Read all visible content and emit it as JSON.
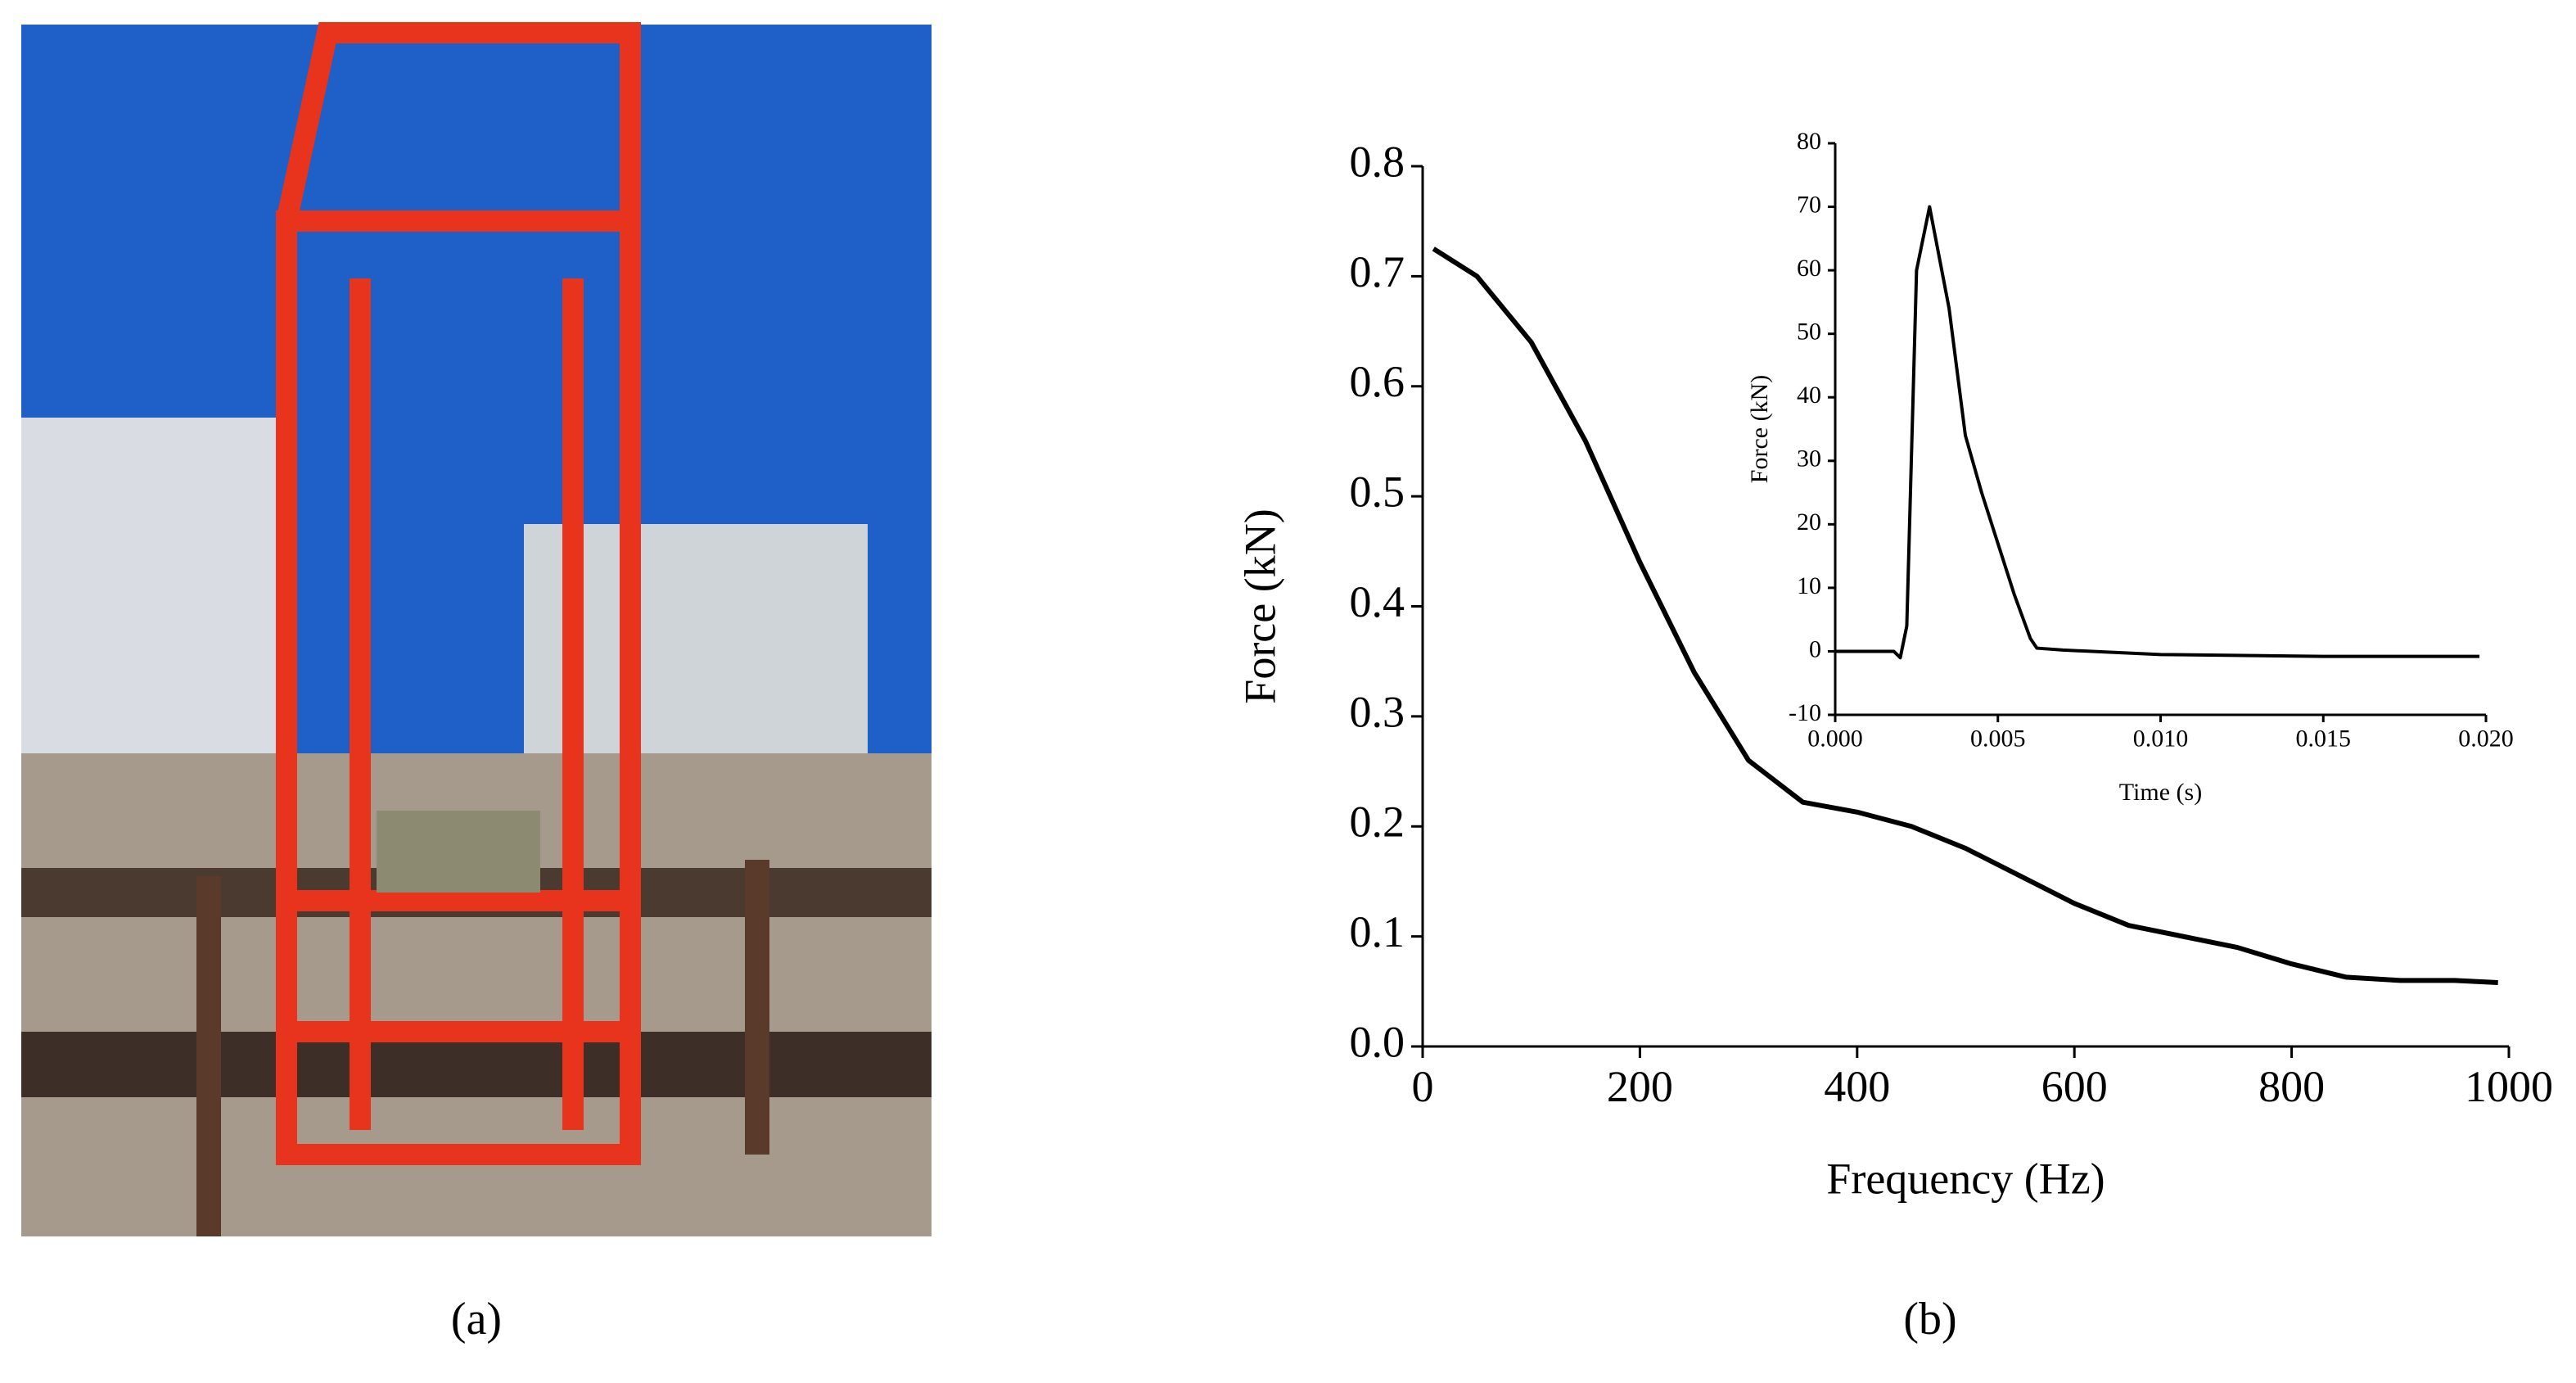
{
  "chart_data": [
    {
      "type": "line",
      "xlabel": "Frequency (Hz)",
      "ylabel": "Force (kN)",
      "x": [
        10,
        50,
        100,
        150,
        200,
        250,
        300,
        350,
        400,
        450,
        500,
        550,
        600,
        650,
        700,
        750,
        800,
        850,
        900,
        950,
        990
      ],
      "series": [
        {
          "color": "#000000",
          "values": [
            0.725,
            0.7,
            0.64,
            0.55,
            0.44,
            0.34,
            0.26,
            0.222,
            0.213,
            0.2,
            0.18,
            0.155,
            0.13,
            0.11,
            0.1,
            0.09,
            0.075,
            0.063,
            0.06,
            0.06,
            0.058
          ]
        }
      ],
      "xlim": [
        0,
        1000
      ],
      "xticks": [
        0,
        200,
        400,
        600,
        800,
        1000
      ],
      "ylim": [
        0,
        0.8
      ],
      "yticks": [
        {
          "value": 0,
          "label": "0.0"
        },
        0.1,
        0.2,
        0.3,
        0.4,
        0.5,
        0.6,
        0.7,
        0.8
      ]
    },
    {
      "type": "line",
      "xlabel": "Time (s)",
      "ylabel": "Force (kN)",
      "x": [
        0,
        0.0018,
        0.002,
        0.0022,
        0.0025,
        0.0029,
        0.0032,
        0.0035,
        0.004,
        0.0045,
        0.005,
        0.0055,
        0.006,
        0.0062,
        0.007,
        0.01,
        0.015,
        0.0198
      ],
      "series": [
        {
          "color": "#000000",
          "values": [
            0,
            0,
            -1,
            4,
            60,
            70,
            62,
            54,
            34,
            25,
            17,
            9,
            2,
            0.5,
            0.2,
            -0.5,
            -0.8,
            -0.8
          ]
        }
      ],
      "xlim": [
        0,
        0.02
      ],
      "xticks": [
        {
          "value": 0,
          "label": "0.000"
        },
        {
          "value": 0.005,
          "label": "0.005"
        },
        {
          "value": 0.01,
          "label": "0.010"
        },
        {
          "value": 0.015,
          "label": "0.015"
        },
        {
          "value": 0.02,
          "label": "0.020"
        }
      ],
      "ylim": [
        -10,
        80
      ],
      "yticks": [
        -10,
        0,
        10,
        20,
        30,
        40,
        50,
        60,
        70,
        80
      ]
    }
  ],
  "panel_labels": [
    "(a)",
    "(b)"
  ]
}
